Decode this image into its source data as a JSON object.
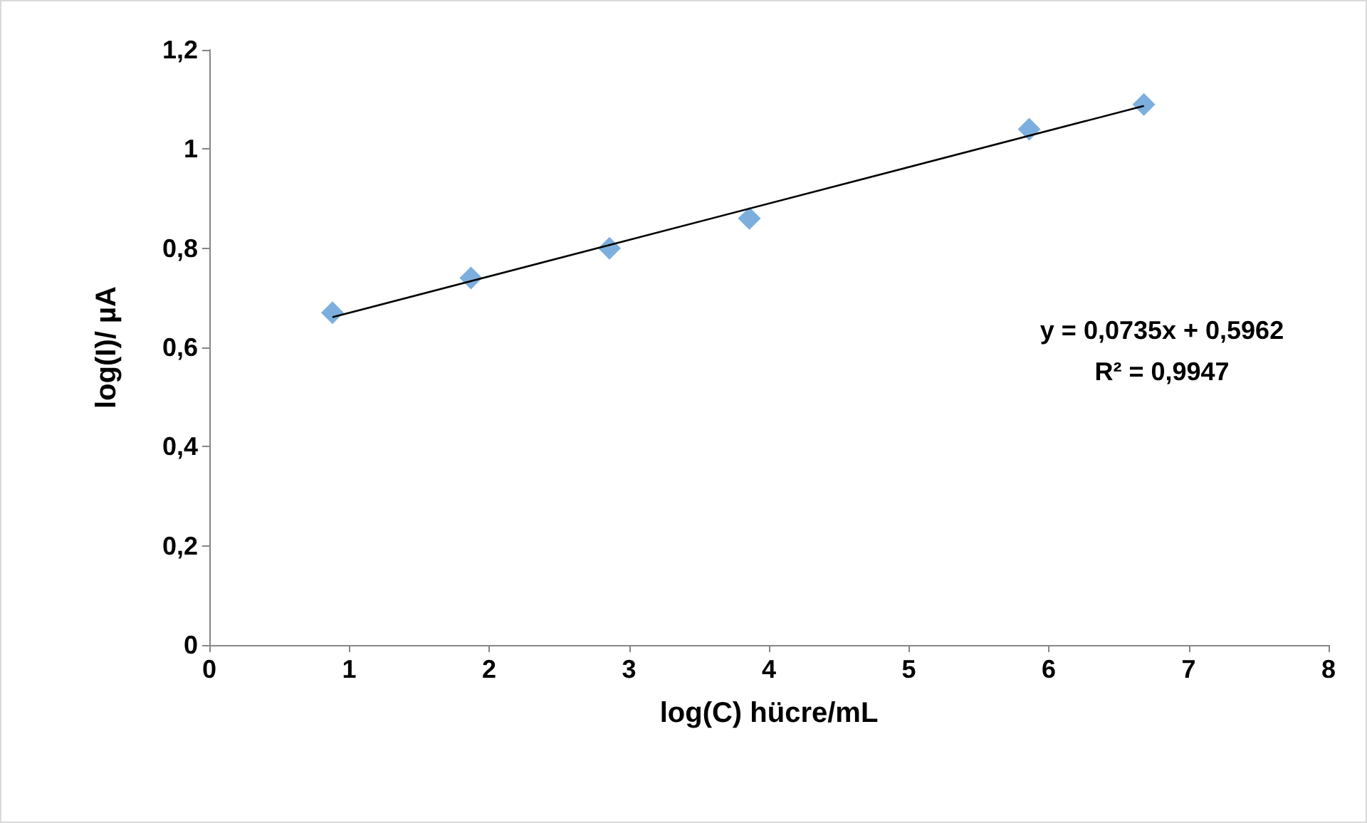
{
  "chart_data": {
    "type": "scatter",
    "xlabel": "log(C) hücre/mL",
    "ylabel": "log(I)/ µA",
    "x": [
      0.88,
      1.87,
      2.86,
      3.86,
      5.86,
      6.68
    ],
    "series": [
      {
        "color": "#5b9bd5",
        "marker": "diamond",
        "values": [
          0.67,
          0.74,
          0.8,
          0.86,
          1.04,
          1.09
        ]
      },
      {
        "type": "line",
        "color": "#000000",
        "marker": "none",
        "x": [
          0.88,
          6.68
        ],
        "values": [
          0.661,
          1.087
        ]
      }
    ],
    "xlim": [
      0,
      8
    ],
    "xticks": [
      0,
      1,
      2,
      3,
      4,
      5,
      6,
      7,
      8
    ],
    "ylim": [
      0,
      1.2
    ],
    "yticks": [
      0,
      {
        "value": 0.2,
        "label": "0,2"
      },
      {
        "value": 0.4,
        "label": "0,4"
      },
      {
        "value": 0.6,
        "label": "0,6"
      },
      {
        "value": 0.8,
        "label": "0,8"
      },
      1,
      {
        "value": 1.2,
        "label": "1,2"
      }
    ],
    "grid": false,
    "annotations": [
      "y = 0,0735x + 0,5962",
      "R² = 0,9947"
    ]
  }
}
